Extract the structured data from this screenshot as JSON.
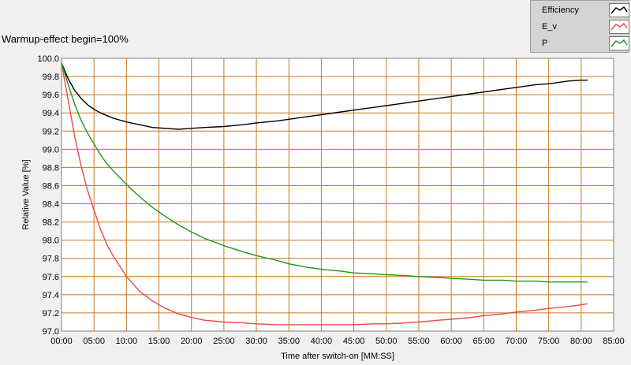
{
  "title": "Warmup-effect begin=100%",
  "legend": {
    "items": [
      {
        "label": "Efficiency",
        "color": "#000000"
      },
      {
        "label": "E_v",
        "color": "#e84a4a"
      },
      {
        "label": "P",
        "color": "#1a9a1a"
      }
    ]
  },
  "chart_data": {
    "type": "line",
    "xlabel": "Time after switch-on [MM:SS]",
    "ylabel": "Relative Value [%]",
    "xlim": [
      0,
      85
    ],
    "ylim": [
      97.0,
      100.0
    ],
    "x_ticks": [
      "00:00",
      "05:00",
      "10:00",
      "15:00",
      "20:00",
      "25:00",
      "30:00",
      "35:00",
      "40:00",
      "45:00",
      "50:00",
      "55:00",
      "60:00",
      "65:00",
      "70:00",
      "75:00",
      "80:00",
      "85:00"
    ],
    "y_ticks": [
      "100.0",
      "99.8",
      "99.6",
      "99.4",
      "99.2",
      "99.0",
      "98.8",
      "98.6",
      "98.4",
      "98.2",
      "98.0",
      "97.8",
      "97.6",
      "97.4",
      "97.2",
      "97.0"
    ],
    "grid": true,
    "series": [
      {
        "name": "Efficiency",
        "color": "#000000",
        "x": [
          0,
          1,
          2,
          3,
          4,
          5,
          6,
          7,
          8,
          10,
          12,
          14,
          16,
          18,
          20,
          22,
          25,
          28,
          30,
          33,
          35,
          38,
          40,
          43,
          45,
          48,
          50,
          53,
          55,
          58,
          60,
          63,
          65,
          68,
          70,
          73,
          75,
          78,
          80,
          81
        ],
        "y": [
          99.95,
          99.78,
          99.65,
          99.56,
          99.49,
          99.44,
          99.4,
          99.37,
          99.34,
          99.3,
          99.27,
          99.24,
          99.23,
          99.22,
          99.23,
          99.24,
          99.25,
          99.27,
          99.29,
          99.31,
          99.33,
          99.36,
          99.38,
          99.41,
          99.43,
          99.46,
          99.48,
          99.51,
          99.53,
          99.56,
          99.58,
          99.61,
          99.63,
          99.66,
          99.68,
          99.71,
          99.72,
          99.75,
          99.76,
          99.76
        ]
      },
      {
        "name": "E_v",
        "color": "#e84a4a",
        "x": [
          0,
          1,
          2,
          3,
          4,
          5,
          6,
          7,
          8,
          10,
          12,
          14,
          16,
          18,
          20,
          22,
          25,
          28,
          30,
          33,
          35,
          38,
          40,
          43,
          45,
          48,
          50,
          53,
          55,
          58,
          60,
          63,
          65,
          68,
          70,
          73,
          75,
          78,
          80,
          81
        ],
        "y": [
          99.95,
          99.55,
          99.15,
          98.82,
          98.55,
          98.33,
          98.12,
          97.95,
          97.82,
          97.6,
          97.44,
          97.33,
          97.25,
          97.19,
          97.15,
          97.12,
          97.1,
          97.09,
          97.08,
          97.07,
          97.07,
          97.07,
          97.07,
          97.07,
          97.07,
          97.08,
          97.08,
          97.09,
          97.1,
          97.12,
          97.13,
          97.15,
          97.17,
          97.19,
          97.21,
          97.23,
          97.25,
          97.27,
          97.29,
          97.3
        ]
      },
      {
        "name": "P",
        "color": "#1a9a1a",
        "x": [
          0,
          1,
          2,
          3,
          4,
          5,
          6,
          7,
          8,
          10,
          12,
          14,
          16,
          18,
          20,
          22,
          25,
          28,
          30,
          33,
          35,
          38,
          40,
          43,
          45,
          48,
          50,
          53,
          55,
          58,
          60,
          63,
          65,
          68,
          70,
          73,
          75,
          78,
          80,
          81
        ],
        "y": [
          99.95,
          99.72,
          99.5,
          99.32,
          99.18,
          99.06,
          98.94,
          98.84,
          98.76,
          98.61,
          98.48,
          98.36,
          98.26,
          98.17,
          98.09,
          98.02,
          97.94,
          97.87,
          97.83,
          97.78,
          97.74,
          97.7,
          97.68,
          97.66,
          97.64,
          97.63,
          97.62,
          97.61,
          97.6,
          97.59,
          97.58,
          97.57,
          97.56,
          97.56,
          97.55,
          97.55,
          97.54,
          97.54,
          97.54,
          97.54
        ]
      }
    ]
  }
}
